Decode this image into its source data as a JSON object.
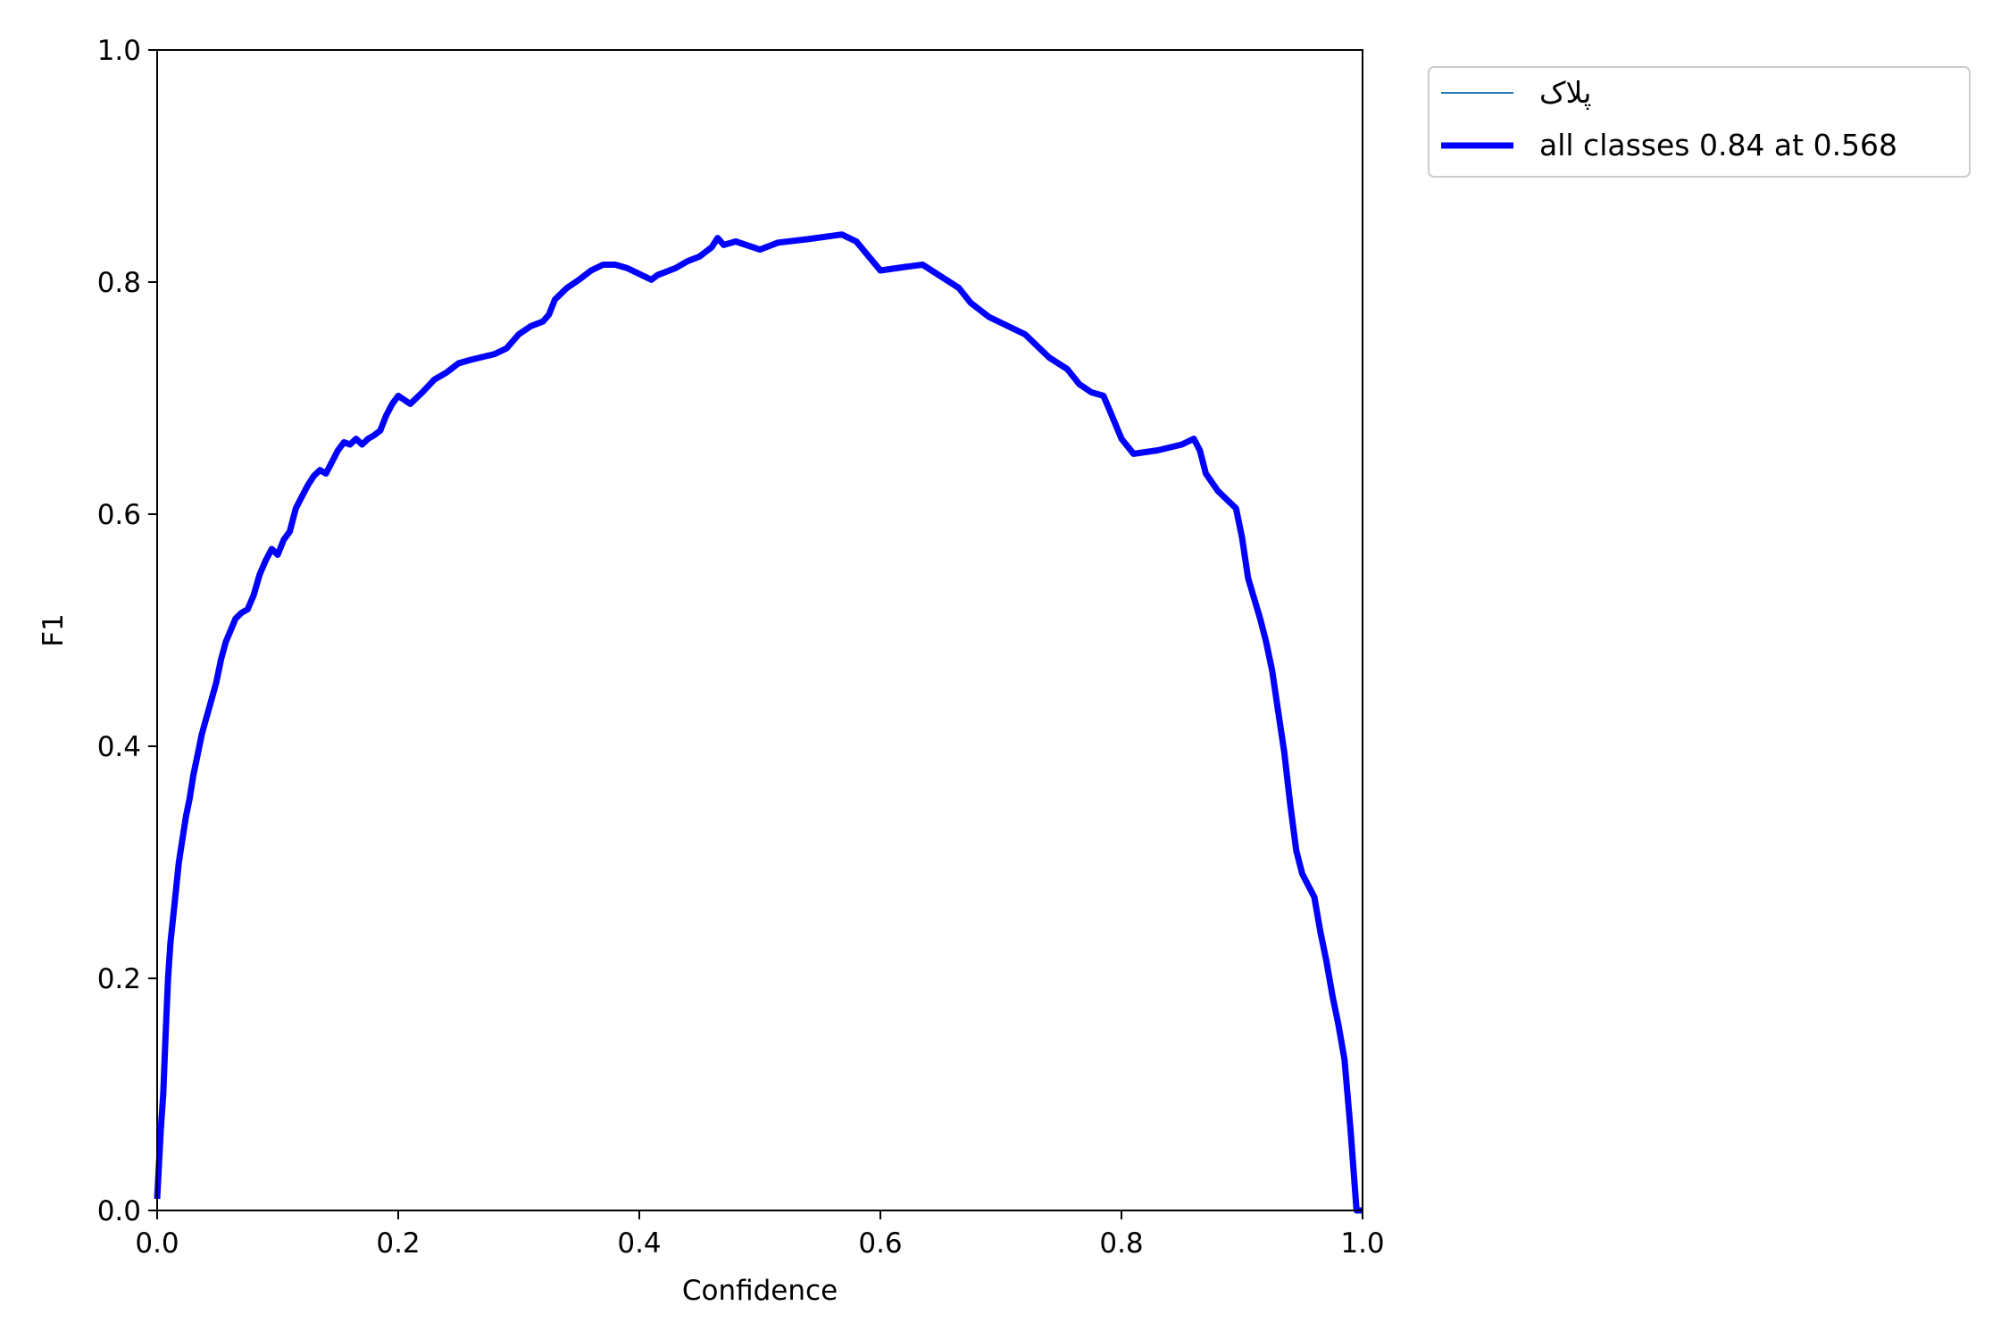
{
  "chart_data": {
    "type": "line",
    "xlabel": "Confidence",
    "ylabel": "F1",
    "xlim": [
      0,
      1
    ],
    "ylim": [
      0,
      1
    ],
    "xticks": [
      "0.0",
      "0.2",
      "0.4",
      "0.6",
      "0.8",
      "1.0"
    ],
    "yticks": [
      "0.0",
      "0.2",
      "0.4",
      "0.6",
      "0.8",
      "1.0"
    ],
    "grid": false,
    "legend_position": "outside-top-right",
    "series": [
      {
        "name": "پلاک",
        "color": "#1f77b4",
        "points": []
      },
      {
        "name": "all classes 0.84 at 0.568",
        "color": "#0000ff",
        "points": [
          [
            0.0,
            0.01
          ],
          [
            0.003,
            0.07
          ],
          [
            0.005,
            0.1
          ],
          [
            0.007,
            0.15
          ],
          [
            0.009,
            0.2
          ],
          [
            0.011,
            0.23
          ],
          [
            0.014,
            0.26
          ],
          [
            0.016,
            0.28
          ],
          [
            0.018,
            0.3
          ],
          [
            0.021,
            0.32
          ],
          [
            0.024,
            0.34
          ],
          [
            0.027,
            0.355
          ],
          [
            0.03,
            0.375
          ],
          [
            0.033,
            0.39
          ],
          [
            0.037,
            0.41
          ],
          [
            0.041,
            0.425
          ],
          [
            0.045,
            0.44
          ],
          [
            0.049,
            0.455
          ],
          [
            0.053,
            0.475
          ],
          [
            0.057,
            0.49
          ],
          [
            0.061,
            0.5
          ],
          [
            0.065,
            0.51
          ],
          [
            0.07,
            0.515
          ],
          [
            0.075,
            0.518
          ],
          [
            0.08,
            0.53
          ],
          [
            0.085,
            0.548
          ],
          [
            0.09,
            0.56
          ],
          [
            0.095,
            0.57
          ],
          [
            0.1,
            0.565
          ],
          [
            0.105,
            0.578
          ],
          [
            0.11,
            0.585
          ],
          [
            0.115,
            0.605
          ],
          [
            0.12,
            0.615
          ],
          [
            0.125,
            0.625
          ],
          [
            0.13,
            0.633
          ],
          [
            0.135,
            0.638
          ],
          [
            0.14,
            0.635
          ],
          [
            0.145,
            0.645
          ],
          [
            0.15,
            0.655
          ],
          [
            0.155,
            0.662
          ],
          [
            0.16,
            0.66
          ],
          [
            0.165,
            0.665
          ],
          [
            0.17,
            0.66
          ],
          [
            0.175,
            0.665
          ],
          [
            0.18,
            0.668
          ],
          [
            0.185,
            0.672
          ],
          [
            0.19,
            0.685
          ],
          [
            0.195,
            0.695
          ],
          [
            0.2,
            0.702
          ],
          [
            0.21,
            0.695
          ],
          [
            0.22,
            0.705
          ],
          [
            0.23,
            0.716
          ],
          [
            0.24,
            0.722
          ],
          [
            0.25,
            0.73
          ],
          [
            0.26,
            0.733
          ],
          [
            0.28,
            0.738
          ],
          [
            0.29,
            0.743
          ],
          [
            0.3,
            0.755
          ],
          [
            0.31,
            0.762
          ],
          [
            0.32,
            0.766
          ],
          [
            0.325,
            0.772
          ],
          [
            0.33,
            0.785
          ],
          [
            0.34,
            0.795
          ],
          [
            0.35,
            0.802
          ],
          [
            0.36,
            0.81
          ],
          [
            0.37,
            0.815
          ],
          [
            0.38,
            0.815
          ],
          [
            0.39,
            0.812
          ],
          [
            0.41,
            0.802
          ],
          [
            0.415,
            0.806
          ],
          [
            0.43,
            0.812
          ],
          [
            0.44,
            0.818
          ],
          [
            0.45,
            0.822
          ],
          [
            0.46,
            0.83
          ],
          [
            0.465,
            0.838
          ],
          [
            0.47,
            0.832
          ],
          [
            0.48,
            0.835
          ],
          [
            0.5,
            0.828
          ],
          [
            0.515,
            0.834
          ],
          [
            0.54,
            0.837
          ],
          [
            0.568,
            0.841
          ],
          [
            0.58,
            0.835
          ],
          [
            0.6,
            0.81
          ],
          [
            0.62,
            0.813
          ],
          [
            0.635,
            0.815
          ],
          [
            0.65,
            0.805
          ],
          [
            0.665,
            0.795
          ],
          [
            0.675,
            0.782
          ],
          [
            0.69,
            0.77
          ],
          [
            0.7,
            0.765
          ],
          [
            0.72,
            0.755
          ],
          [
            0.74,
            0.735
          ],
          [
            0.755,
            0.725
          ],
          [
            0.765,
            0.712
          ],
          [
            0.775,
            0.705
          ],
          [
            0.785,
            0.702
          ],
          [
            0.79,
            0.69
          ],
          [
            0.8,
            0.665
          ],
          [
            0.81,
            0.652
          ],
          [
            0.83,
            0.655
          ],
          [
            0.85,
            0.66
          ],
          [
            0.86,
            0.665
          ],
          [
            0.865,
            0.655
          ],
          [
            0.87,
            0.635
          ],
          [
            0.88,
            0.62
          ],
          [
            0.895,
            0.605
          ],
          [
            0.9,
            0.58
          ],
          [
            0.905,
            0.545
          ],
          [
            0.915,
            0.51
          ],
          [
            0.92,
            0.49
          ],
          [
            0.925,
            0.465
          ],
          [
            0.93,
            0.43
          ],
          [
            0.935,
            0.395
          ],
          [
            0.94,
            0.35
          ],
          [
            0.945,
            0.31
          ],
          [
            0.95,
            0.29
          ],
          [
            0.96,
            0.27
          ],
          [
            0.965,
            0.24
          ],
          [
            0.97,
            0.215
          ],
          [
            0.975,
            0.185
          ],
          [
            0.98,
            0.16
          ],
          [
            0.985,
            0.13
          ],
          [
            0.99,
            0.07
          ],
          [
            0.995,
            0.0
          ],
          [
            1.0,
            0.0
          ]
        ]
      }
    ]
  }
}
